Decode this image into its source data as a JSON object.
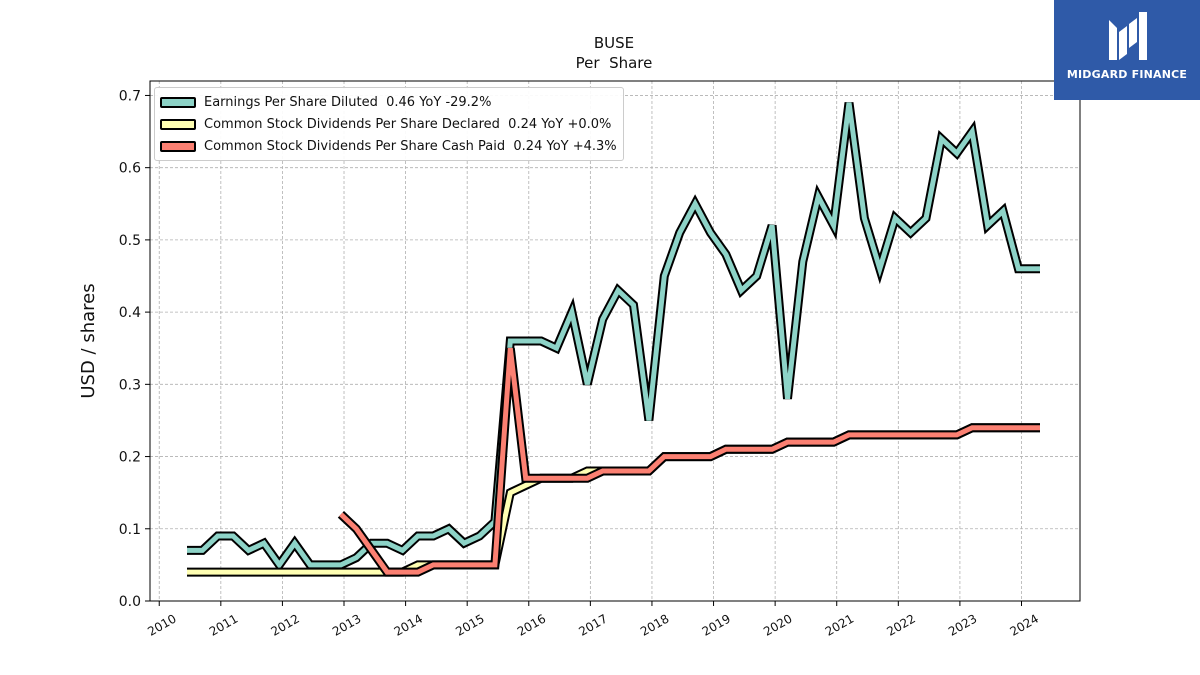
{
  "logo": {
    "text": "MIDGARD FINANCE",
    "icon": "mf-monogram-icon",
    "background": "#2f5aa8"
  },
  "chart_data": {
    "type": "line",
    "title": "BUSE",
    "subtitle": "Per  Share",
    "xlabel": "",
    "ylabel": "USD / shares",
    "xlim": [
      2009.85,
      2024.95
    ],
    "ylim": [
      0.0,
      0.72
    ],
    "x_ticks": [
      "2010",
      "2011",
      "2012",
      "2013",
      "2014",
      "2015",
      "2016",
      "2017",
      "2018",
      "2019",
      "2020",
      "2021",
      "2022",
      "2023",
      "2024"
    ],
    "y_ticks": [
      "0.0",
      "0.1",
      "0.2",
      "0.3",
      "0.4",
      "0.5",
      "0.6",
      "0.7"
    ],
    "grid": true,
    "legend_position": "top-left",
    "series": [
      {
        "name": "Earnings Per Share Diluted",
        "legend_label": "Earnings Per Share Diluted  0.46 YoY -29.2%",
        "color": "#8dd3c7",
        "x": [
          2010.45,
          2010.7,
          2010.95,
          2011.2,
          2011.45,
          2011.7,
          2011.95,
          2012.2,
          2012.45,
          2012.7,
          2012.95,
          2013.2,
          2013.45,
          2013.7,
          2013.95,
          2014.2,
          2014.45,
          2014.7,
          2014.95,
          2015.2,
          2015.45,
          2015.7,
          2015.95,
          2016.2,
          2016.45,
          2016.7,
          2016.95,
          2017.2,
          2017.45,
          2017.7,
          2017.95,
          2018.2,
          2018.45,
          2018.7,
          2018.95,
          2019.2,
          2019.45,
          2019.7,
          2019.95,
          2020.2,
          2020.45,
          2020.7,
          2020.95,
          2021.2,
          2021.45,
          2021.7,
          2021.95,
          2022.2,
          2022.45,
          2022.7,
          2022.95,
          2023.2,
          2023.45,
          2023.7,
          2023.95,
          2024.3
        ],
        "values": [
          0.07,
          0.07,
          0.09,
          0.09,
          0.07,
          0.08,
          0.05,
          0.08,
          0.05,
          0.05,
          0.05,
          0.06,
          0.08,
          0.08,
          0.07,
          0.09,
          0.09,
          0.1,
          0.08,
          0.09,
          0.11,
          0.36,
          0.36,
          0.36,
          0.35,
          0.4,
          0.3,
          0.39,
          0.43,
          0.41,
          0.25,
          0.45,
          0.51,
          0.55,
          0.51,
          0.48,
          0.43,
          0.45,
          0.52,
          0.28,
          0.47,
          0.56,
          0.52,
          0.69,
          0.53,
          0.46,
          0.53,
          0.51,
          0.53,
          0.64,
          0.62,
          0.65,
          0.52,
          0.54,
          0.46,
          0.46
        ]
      },
      {
        "name": "Common Stock Dividends Per Share Declared",
        "legend_label": "Common Stock Dividends Per Share Declared  0.24 YoY +0.0%",
        "color": "#ffffb3",
        "x": [
          2010.45,
          2010.7,
          2010.95,
          2011.2,
          2011.45,
          2011.7,
          2011.95,
          2012.2,
          2012.45,
          2012.7,
          2012.95,
          2013.2,
          2013.45,
          2013.7,
          2013.95,
          2014.2,
          2014.45,
          2014.7,
          2014.95,
          2015.2,
          2015.45,
          2015.7,
          2015.95,
          2016.2,
          2016.45,
          2016.7,
          2016.95,
          2017.2,
          2017.45,
          2017.7,
          2017.95,
          2018.2,
          2018.45,
          2018.7,
          2018.95,
          2019.2,
          2019.45,
          2019.7,
          2019.95,
          2020.2,
          2020.45,
          2020.7,
          2020.95,
          2021.2,
          2021.45,
          2021.7,
          2021.95,
          2022.2,
          2022.45,
          2022.7,
          2022.95,
          2023.2,
          2023.45,
          2023.7,
          2023.95,
          2024.3
        ],
        "values": [
          0.04,
          0.04,
          0.04,
          0.04,
          0.04,
          0.04,
          0.04,
          0.04,
          0.04,
          0.04,
          0.04,
          0.04,
          0.04,
          0.04,
          0.04,
          0.05,
          0.05,
          0.05,
          0.05,
          0.05,
          0.05,
          0.15,
          0.16,
          0.17,
          0.17,
          0.17,
          0.18,
          0.18,
          0.18,
          0.18,
          0.18,
          0.2,
          0.2,
          0.2,
          0.2,
          0.21,
          0.21,
          0.21,
          0.21,
          0.22,
          0.22,
          0.22,
          0.22,
          0.23,
          0.23,
          0.23,
          0.23,
          0.23,
          0.23,
          0.23,
          0.23,
          0.24,
          0.24,
          0.24,
          0.24,
          0.24
        ]
      },
      {
        "name": "Common Stock Dividends Per Share Cash Paid",
        "legend_label": "Common Stock Dividends Per Share Cash Paid  0.24 YoY +4.3%",
        "color": "#fb8072",
        "x": [
          2012.95,
          2013.2,
          2013.45,
          2013.7,
          2013.95,
          2014.2,
          2014.45,
          2014.7,
          2014.95,
          2015.2,
          2015.45,
          2015.7,
          2015.95,
          2016.2,
          2016.45,
          2016.7,
          2016.95,
          2017.2,
          2017.45,
          2017.7,
          2017.95,
          2018.2,
          2018.45,
          2018.7,
          2018.95,
          2019.2,
          2019.45,
          2019.7,
          2019.95,
          2020.2,
          2020.45,
          2020.7,
          2020.95,
          2021.2,
          2021.45,
          2021.7,
          2021.95,
          2022.2,
          2022.45,
          2022.7,
          2022.95,
          2023.2,
          2023.45,
          2023.7,
          2023.95,
          2024.3
        ],
        "values": [
          0.12,
          0.1,
          0.07,
          0.04,
          0.04,
          0.04,
          0.05,
          0.05,
          0.05,
          0.05,
          0.05,
          0.35,
          0.17,
          0.17,
          0.17,
          0.17,
          0.17,
          0.18,
          0.18,
          0.18,
          0.18,
          0.2,
          0.2,
          0.2,
          0.2,
          0.21,
          0.21,
          0.21,
          0.21,
          0.22,
          0.22,
          0.22,
          0.22,
          0.23,
          0.23,
          0.23,
          0.23,
          0.23,
          0.23,
          0.23,
          0.23,
          0.24,
          0.24,
          0.24,
          0.24,
          0.24
        ]
      }
    ]
  }
}
